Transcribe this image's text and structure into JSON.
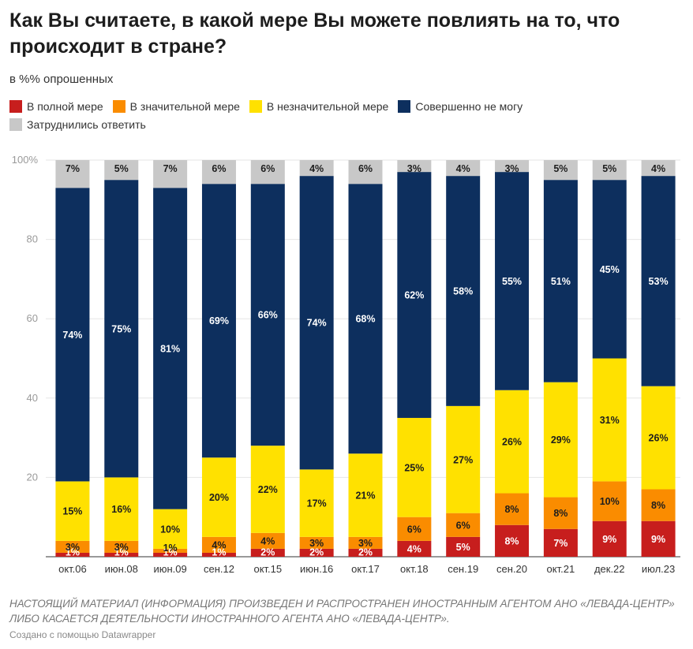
{
  "title": "Как Вы считаете, в какой мере Вы можете повлиять на то, что происходит в стране?",
  "subtitle": "в %% опрошенных",
  "footnote": "НАСТОЯЩИЙ МАТЕРИАЛ (ИНФОРМАЦИЯ) ПРОИЗВЕДЕН И РАСПРОСТРАНЕН ИНОСТРАННЫМ АГЕНТОМ АНО «ЛЕВАДА-ЦЕНТР» ЛИБО КАСАЕТСЯ ДЕЯТЕЛЬНОСТИ ИНОСТРАННОГО АГЕНТА АНО «ЛЕВАДА-ЦЕНТР».",
  "credit": "Создано с помощью Datawrapper",
  "chart_data": {
    "type": "bar",
    "stacked": true,
    "title": "Как Вы считаете, в какой мере Вы можете повлиять на то, что происходит в стране?",
    "subtitle": "в %% опрошенных",
    "categories": [
      "окт.06",
      "июн.08",
      "июн.09",
      "сен.12",
      "окт.15",
      "июн.16",
      "окт.17",
      "окт.18",
      "сен.19",
      "сен.20",
      "окт.21",
      "дек.22",
      "июл.23"
    ],
    "series": [
      {
        "name": "В полной мере",
        "color": "#c71e1d",
        "label_color": "#ffffff",
        "values": [
          1,
          1,
          1,
          1,
          2,
          2,
          2,
          4,
          5,
          8,
          7,
          9,
          9
        ]
      },
      {
        "name": "В значительной мере",
        "color": "#fa8c00",
        "label_color": "#1d1d1d",
        "values": [
          3,
          3,
          1,
          4,
          4,
          3,
          3,
          6,
          6,
          8,
          8,
          10,
          8
        ]
      },
      {
        "name": "В незначительной мере",
        "color": "#ffe100",
        "label_color": "#1d1d1d",
        "values": [
          15,
          16,
          10,
          20,
          22,
          17,
          21,
          25,
          27,
          26,
          29,
          31,
          26
        ]
      },
      {
        "name": "Совершенно не могу",
        "color": "#0d2f5e",
        "label_color": "#ffffff",
        "values": [
          74,
          75,
          81,
          69,
          66,
          74,
          68,
          62,
          58,
          55,
          51,
          45,
          53
        ]
      },
      {
        "name": "Затруднились ответить",
        "color": "#c8c8c8",
        "label_color": "#1d1d1d",
        "values": [
          7,
          5,
          7,
          6,
          6,
          4,
          6,
          3,
          4,
          3,
          5,
          5,
          4
        ]
      }
    ],
    "value_suffix": "%",
    "ylim": [
      0,
      100
    ],
    "yticks": [
      0,
      20,
      40,
      60,
      80,
      100
    ],
    "ytick_labels": [
      "",
      "20",
      "40",
      "60",
      "80",
      "100%"
    ],
    "grid": true,
    "legend_position": "top-left"
  }
}
